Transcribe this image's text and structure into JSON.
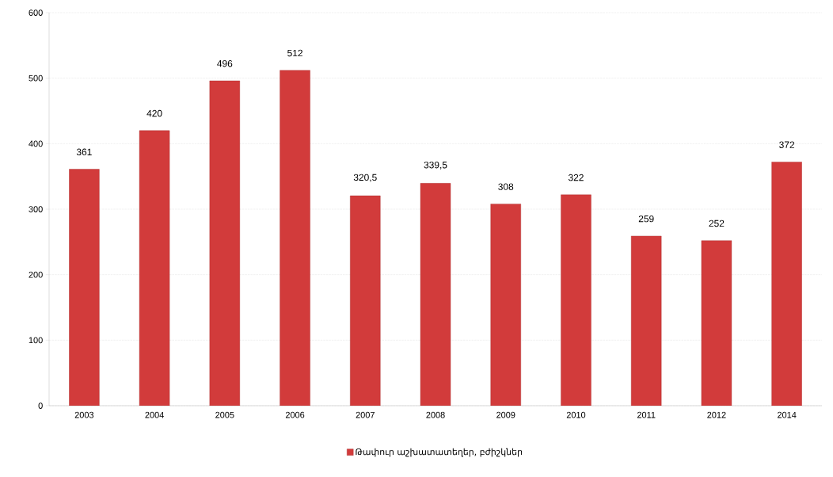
{
  "chart_data": {
    "type": "bar",
    "categories": [
      "2003",
      "2004",
      "2005",
      "2006",
      "2007",
      "2008",
      "2009",
      "2010",
      "2011",
      "2012",
      "2014"
    ],
    "series": [
      {
        "name": "Թափուր աշխատատեղեր, բժիշկներ",
        "color": "#d23b3b",
        "values": [
          361,
          420,
          496,
          512,
          320.5,
          339.5,
          308,
          322,
          259,
          252,
          372
        ],
        "value_labels": [
          "361",
          "420",
          "496",
          "512",
          "320,5",
          "339,5",
          "308",
          "322",
          "259",
          "252",
          "372"
        ]
      }
    ],
    "ylim": [
      0,
      600
    ],
    "yticks": [
      0,
      100,
      200,
      300,
      400,
      500,
      600
    ],
    "grid": "y",
    "legend": "bottom"
  }
}
